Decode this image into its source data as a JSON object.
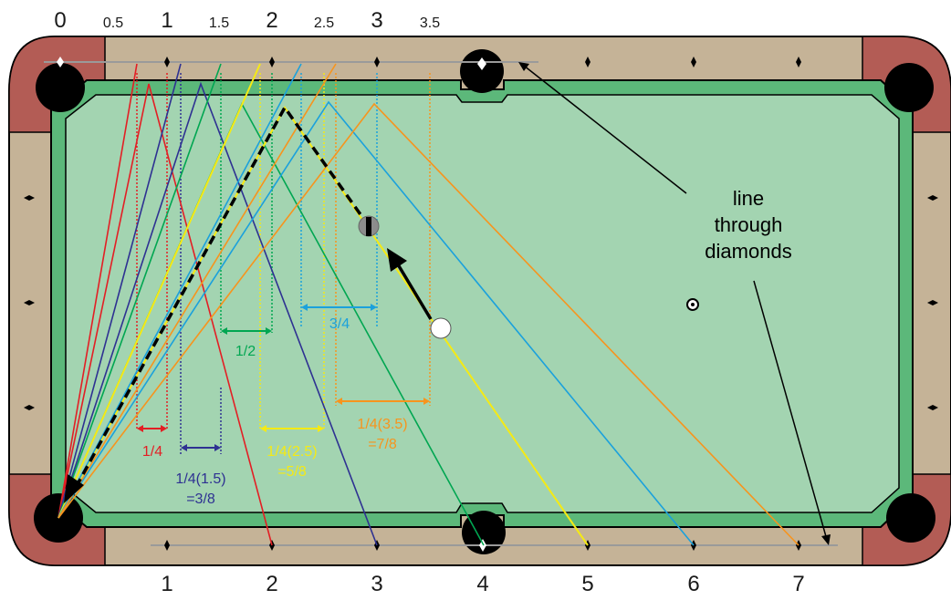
{
  "top_numbers": [
    "0",
    "0.5",
    "1",
    "1.5",
    "2",
    "2.5",
    "3",
    "3.5"
  ],
  "bottom_numbers": [
    "1",
    "2",
    "3",
    "4",
    "5",
    "6",
    "7"
  ],
  "annotation": {
    "line1": "line",
    "line2": "through",
    "line3": "diamonds"
  },
  "measures": {
    "quarter": "1/4",
    "quarter_1_5_a": "1/4(1.5)",
    "quarter_1_5_b": "=3/8",
    "half": "1/2",
    "quarter_2_5_a": "1/4(2.5)",
    "quarter_2_5_b": "=5/8",
    "three_quarter": "3/4",
    "quarter_3_5_a": "1/4(3.5)",
    "quarter_3_5_b": "=7/8"
  },
  "colors": {
    "red": "#e31e24",
    "navy": "#2e3192",
    "green": "#00a651",
    "yellow": "#f5ea14",
    "cyan": "#1ba1dc",
    "orange": "#f7941d",
    "felt": "#a3d4b1",
    "cushion": "#5cb87a",
    "rail": "#c5b397",
    "corner": "#b35c55"
  }
}
